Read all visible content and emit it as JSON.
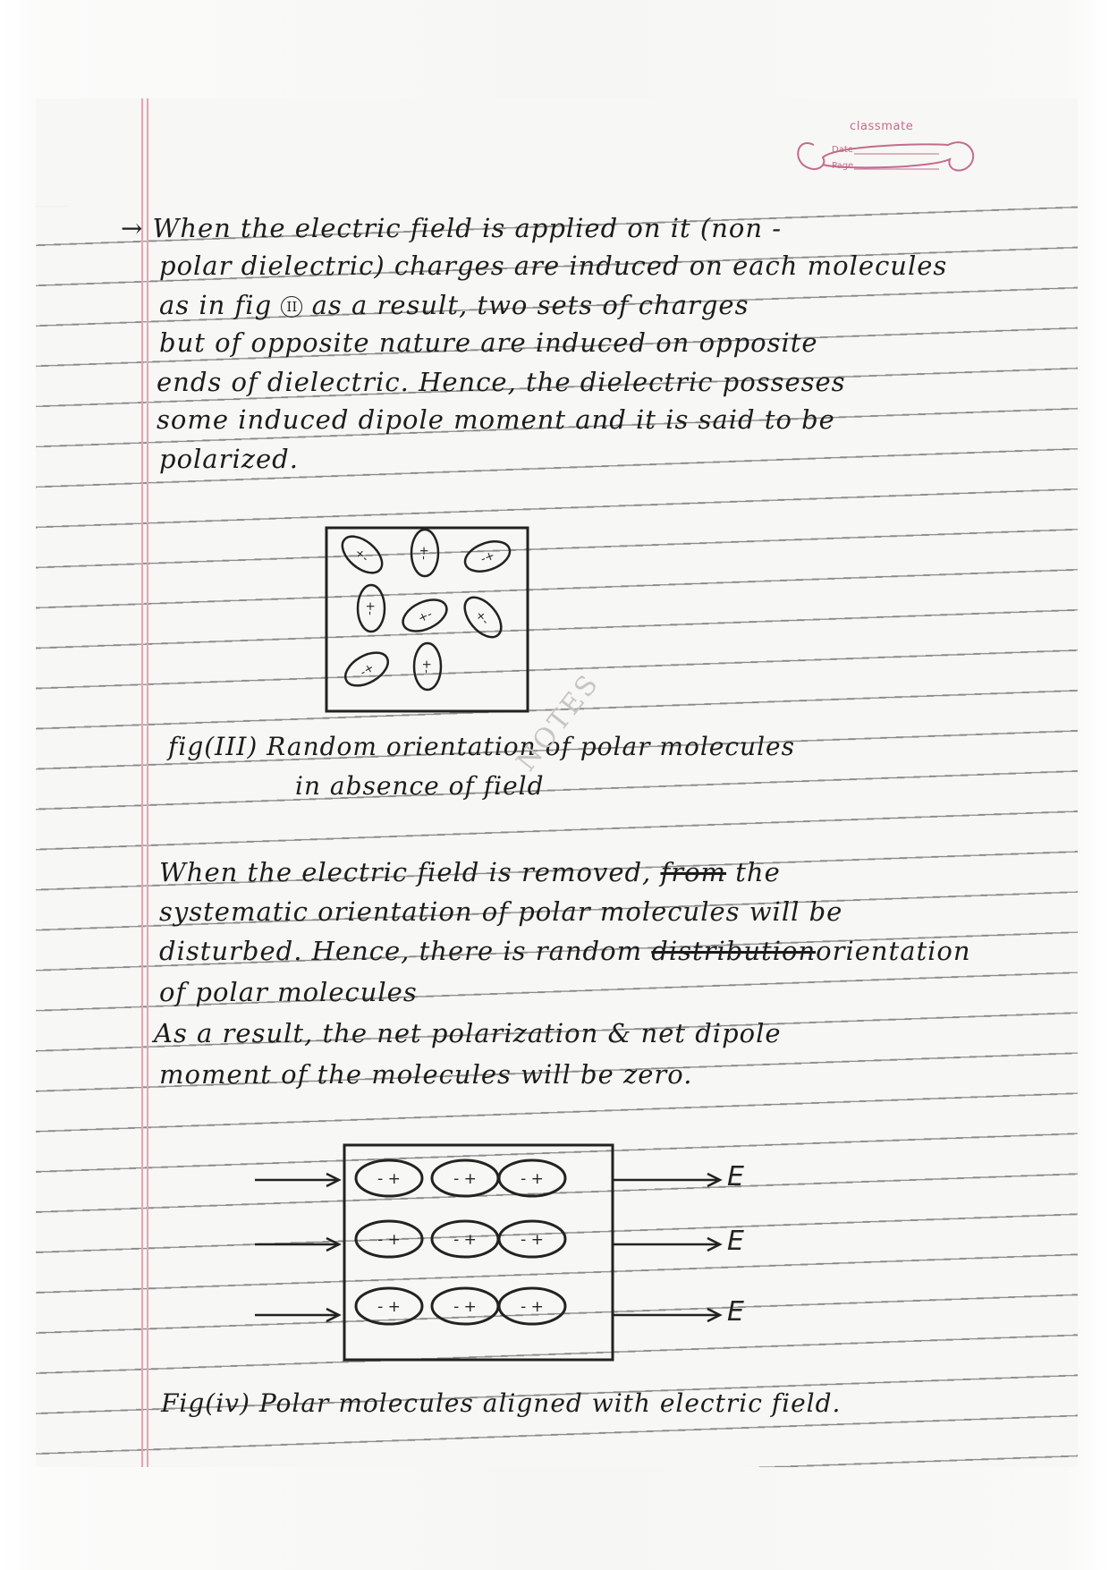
{
  "stamp": {
    "brand": "classmate",
    "date_label": "Date",
    "page_label": "Page"
  },
  "watermark": "NOTES",
  "paragraph1": {
    "lines": [
      "→ When the electric field is applied on it (non -",
      "polar dielectric) charges are induced on each molecules",
      "as in fig",
      "as a result, two sets of charges",
      "but of opposite nature are induced on opposite",
      "ends of dielectric. Hence, the dielectric posseses",
      "some induced dipole moment and it is said to be",
      "polarized."
    ],
    "fig_ref": "II"
  },
  "figure3": {
    "caption_line1": "fig(III) Random orientation of polar molecules",
    "caption_line2": "in absence of field",
    "molecules": [
      {
        "label": "+-",
        "angle": 40
      },
      {
        "label": "+-",
        "angle": 90
      },
      {
        "label": "-+",
        "angle": -20
      },
      {
        "label": "+-",
        "angle": 90
      },
      {
        "label": "+-",
        "angle": -25
      },
      {
        "label": "+-",
        "angle": 50
      },
      {
        "label": "-+",
        "angle": -30
      },
      {
        "label": "+-",
        "angle": 90
      }
    ]
  },
  "paragraph2": {
    "line1_a": "When the electric field is removed,",
    "line1_struck": "from",
    "line1_b": "the",
    "line2": "systematic orientation of polar molecules will be",
    "line3_a": "disturbed. Hence, there is random",
    "line3_struck": "distribution",
    "line3_b": "orientation",
    "line4": "of polar molecules",
    "line5": "As a result, the net polarization & net dipole",
    "line6": "moment of the molecules will be zero."
  },
  "figure4": {
    "caption": "Fig(iv) Polar molecules aligned with electric field.",
    "field_label": "E",
    "molecule_label": "- +"
  }
}
